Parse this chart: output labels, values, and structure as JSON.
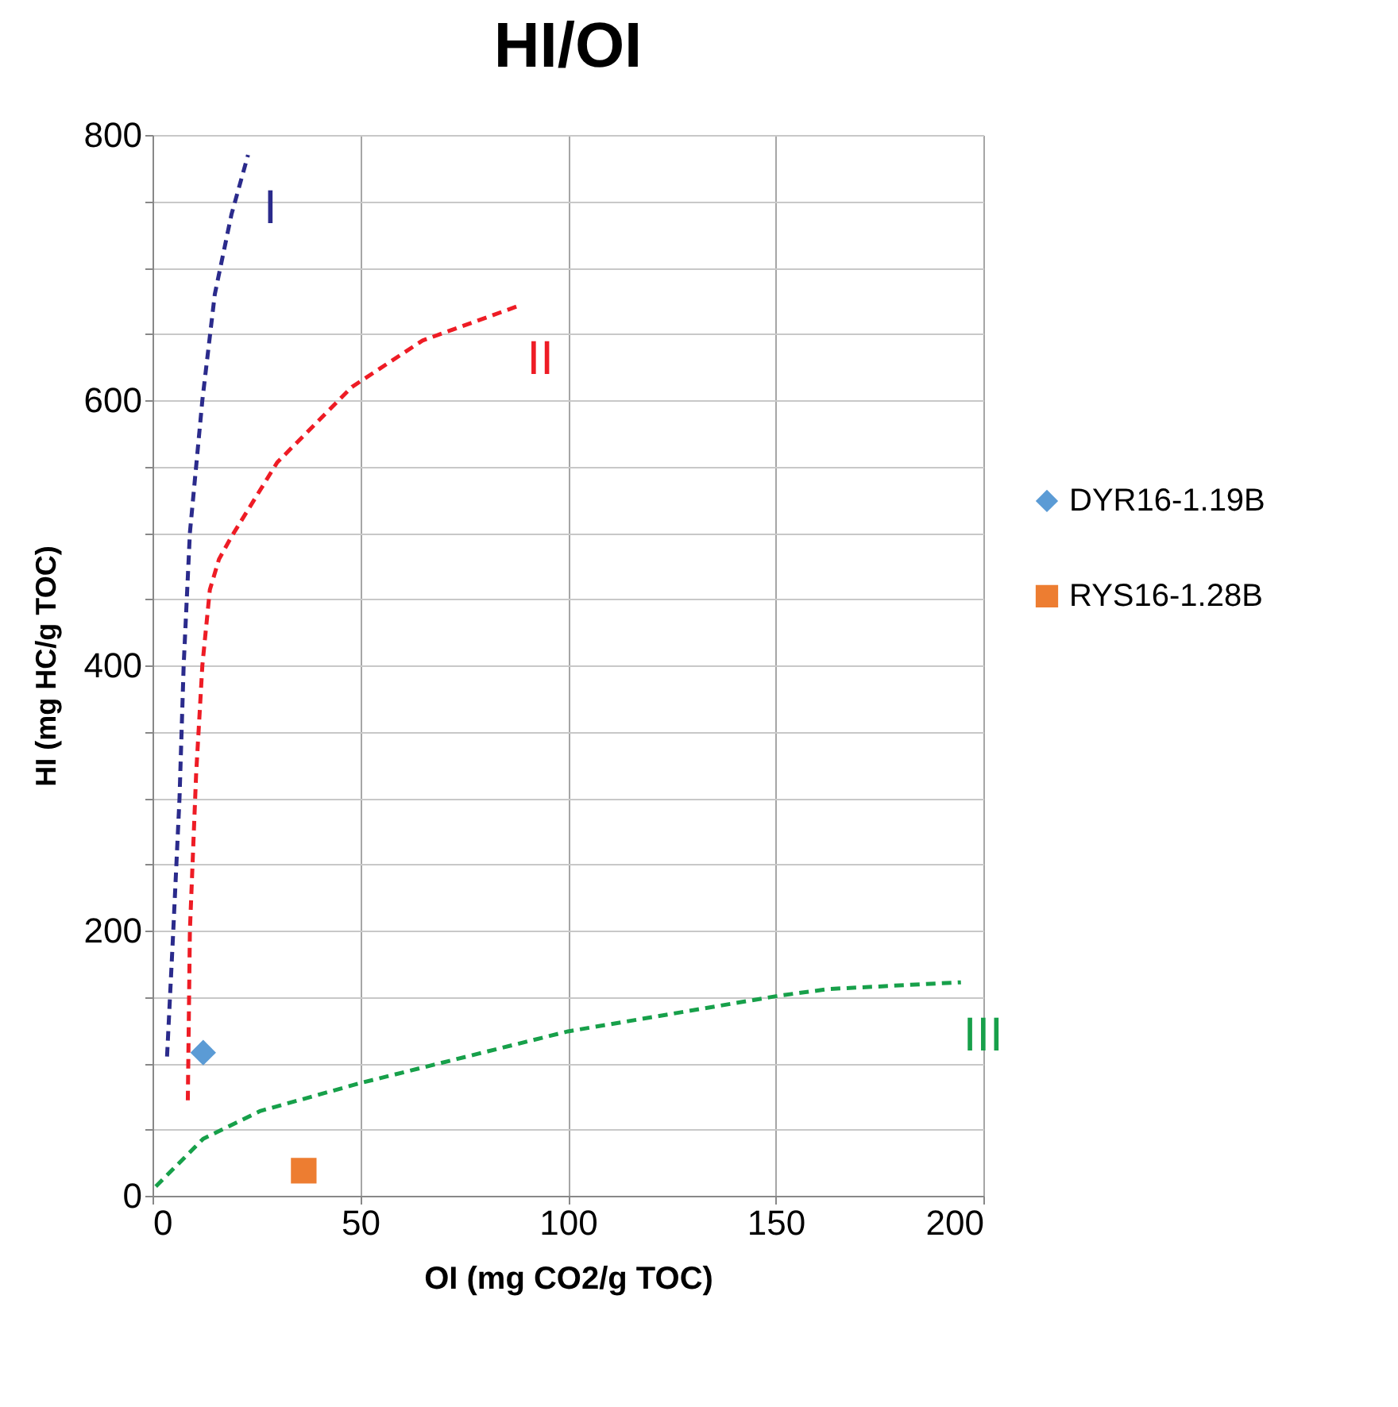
{
  "chart_data": {
    "type": "scatter",
    "title": "HI/OI",
    "xlabel": "OI (mg CO2/g TOC)",
    "ylabel": "HI (mg HC/g TOC)",
    "xlim": [
      0,
      200
    ],
    "xticks": [
      0,
      50,
      100,
      150,
      200
    ],
    "ylim": [
      0,
      800
    ],
    "yticks": [
      0,
      {
        "value": 50,
        "label": null
      },
      {
        "value": 100,
        "label": null
      },
      {
        "value": 150,
        "label": null
      },
      200,
      {
        "value": 250,
        "label": null
      },
      {
        "value": 300,
        "label": null
      },
      {
        "value": 350,
        "label": null
      },
      400,
      {
        "value": 450,
        "label": null
      },
      {
        "value": 500,
        "label": null
      },
      {
        "value": 550,
        "label": null
      },
      600,
      {
        "value": 650,
        "label": null
      },
      {
        "value": 700,
        "label": null
      },
      {
        "value": 750,
        "label": null
      },
      800
    ],
    "grid": true,
    "legend": "right",
    "line_style": "dashed",
    "series": [
      {
        "type": "line",
        "name": "I",
        "color": "#2b2b8c",
        "x": [
          3.5,
          5,
          6.5,
          7.5,
          9,
          12,
          15,
          19,
          23
        ],
        "values": [
          105,
          200,
          300,
          400,
          500,
          600,
          680,
          740,
          785
        ]
      },
      {
        "type": "line",
        "name": "II",
        "color": "#ee1c25",
        "x": [
          8.5,
          9,
          10.5,
          12,
          13.8,
          16,
          19,
          30,
          48,
          65,
          88
        ],
        "values": [
          72,
          200,
          318,
          400,
          457,
          480,
          497,
          553,
          610,
          645,
          671
        ]
      },
      {
        "type": "line",
        "name": "III",
        "color": "#17a04a",
        "x": [
          0.8,
          12.2,
          26,
          50,
          100,
          151,
          163,
          194.6
        ],
        "values": [
          7,
          43,
          64,
          85,
          124,
          151,
          156,
          161
        ]
      },
      {
        "name": "DYR16-1.19B",
        "color": "#5b9bd5",
        "marker": "diamond",
        "x": [
          12.2
        ],
        "values": [
          108
        ]
      },
      {
        "name": "RYS16-1.28B",
        "color": "#ed7d31",
        "marker": "square",
        "x": [
          36.4
        ],
        "values": [
          19
        ]
      }
    ]
  }
}
